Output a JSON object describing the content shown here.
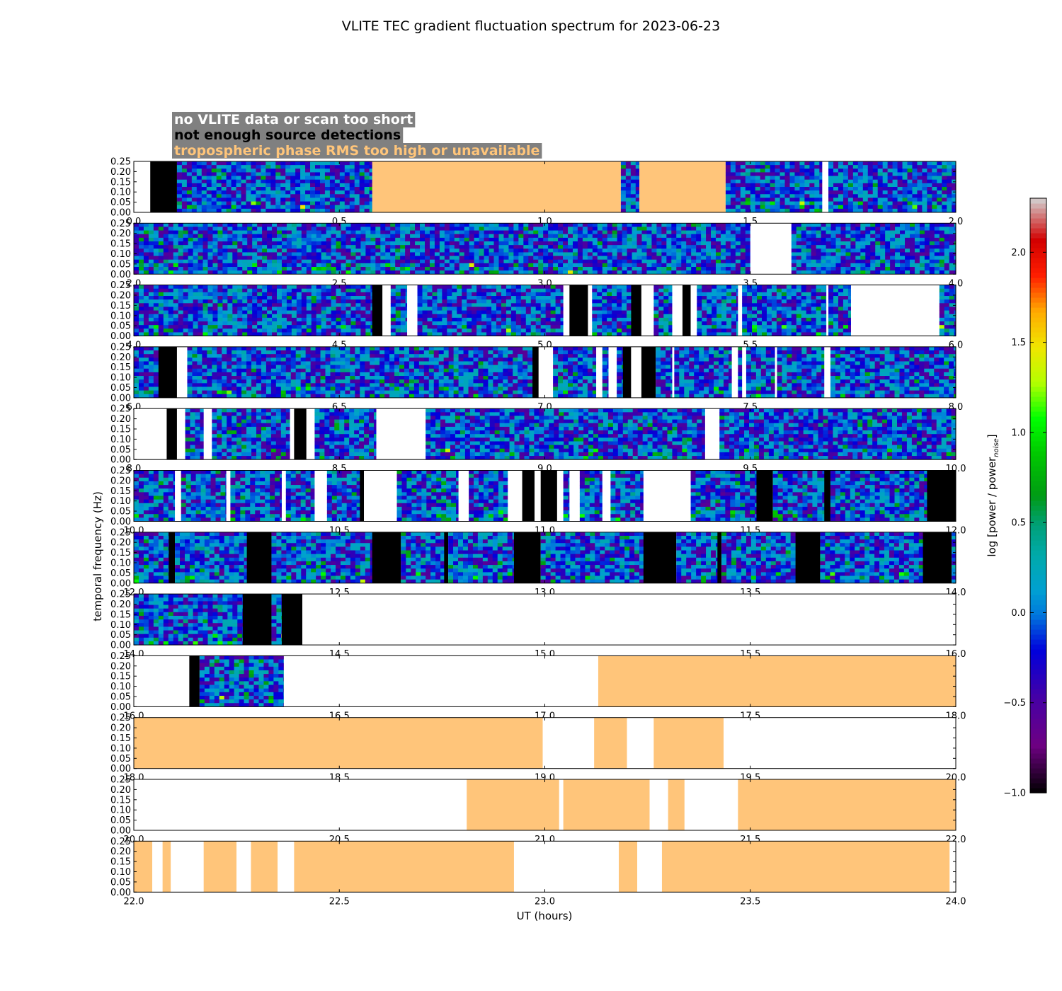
{
  "chart_data": {
    "type": "heatmap",
    "title": "VLITE TEC gradient fluctuation spectrum for 2023-06-23",
    "xlabel": "UT (hours)",
    "ylabel": "temporal frequency (Hz)",
    "ylim": [
      0,
      0.25
    ],
    "yticks": [
      "0.00",
      "0.05",
      "0.10",
      "0.15",
      "0.20",
      "0.25"
    ],
    "legend": {
      "position": "top-left",
      "entries": [
        {
          "label": "no VLITE data or scan too short",
          "category": "white",
          "text_color": "#ffffff",
          "box_color": "#808080"
        },
        {
          "label": "not enough source detections",
          "category": "black",
          "text_color": "#000000",
          "box_color": "#808080"
        },
        {
          "label": "tropospheric phase RMS too high or unavailable",
          "category": "orange",
          "text_color": "#ffc57a",
          "box_color": "#808080"
        }
      ]
    },
    "category_colors": {
      "white": "#ffffff",
      "black": "#000000",
      "orange": "#ffc57a"
    },
    "colorbar": {
      "label": "log [power / power",
      "label_sub": "noise",
      "label_end": "]",
      "range": [
        -1.0,
        2.3
      ],
      "ticks": [
        "−1.0",
        "−0.5",
        "0.0",
        "0.5",
        "1.0",
        "1.5",
        "2.0"
      ],
      "tick_values": [
        -1.0,
        -0.5,
        0.0,
        0.5,
        1.0,
        1.5,
        2.0
      ],
      "colormap": "spectral"
    },
    "panels": [
      {
        "x": [
          0.0,
          2.0
        ],
        "xticks": [
          "0.0",
          "0.5",
          "1.0",
          "1.5",
          "2.0"
        ],
        "seed": 11,
        "segments": [
          [
            0.0,
            0.04,
            "white"
          ],
          [
            0.04,
            0.105,
            "black"
          ],
          [
            0.105,
            0.58,
            "data"
          ],
          [
            0.58,
            1.185,
            "orange"
          ],
          [
            1.185,
            1.23,
            "data"
          ],
          [
            1.23,
            1.44,
            "orange"
          ],
          [
            1.44,
            1.675,
            "data"
          ],
          [
            1.675,
            1.69,
            "white"
          ],
          [
            1.69,
            2.0,
            "data"
          ]
        ]
      },
      {
        "x": [
          2.0,
          4.0
        ],
        "xticks": [
          "2.0",
          "2.5",
          "3.0",
          "3.5",
          "4.0"
        ],
        "seed": 23,
        "segments": [
          [
            2.0,
            3.5,
            "data"
          ],
          [
            3.5,
            3.6,
            "white"
          ],
          [
            3.6,
            4.0,
            "data"
          ]
        ]
      },
      {
        "x": [
          4.0,
          6.0
        ],
        "xticks": [
          "4.0",
          "4.5",
          "5.0",
          "5.5",
          "6.0"
        ],
        "seed": 37,
        "segments": [
          [
            4.0,
            4.58,
            "data"
          ],
          [
            4.58,
            4.605,
            "black"
          ],
          [
            4.605,
            4.625,
            "white"
          ],
          [
            4.625,
            4.665,
            "data"
          ],
          [
            4.665,
            4.69,
            "white"
          ],
          [
            4.69,
            5.045,
            "data"
          ],
          [
            5.045,
            5.06,
            "white"
          ],
          [
            5.06,
            5.105,
            "black"
          ],
          [
            5.105,
            5.115,
            "white"
          ],
          [
            5.115,
            5.21,
            "data"
          ],
          [
            5.21,
            5.235,
            "black"
          ],
          [
            5.235,
            5.265,
            "white"
          ],
          [
            5.265,
            5.31,
            "data"
          ],
          [
            5.31,
            5.335,
            "white"
          ],
          [
            5.335,
            5.355,
            "black"
          ],
          [
            5.355,
            5.37,
            "white"
          ],
          [
            5.37,
            5.47,
            "data"
          ],
          [
            5.47,
            5.48,
            "white"
          ],
          [
            5.48,
            5.685,
            "data"
          ],
          [
            5.685,
            5.69,
            "white"
          ],
          [
            5.69,
            5.745,
            "data"
          ],
          [
            5.745,
            5.96,
            "white"
          ],
          [
            5.96,
            6.0,
            "data"
          ]
        ]
      },
      {
        "x": [
          6.0,
          8.0
        ],
        "xticks": [
          "6.0",
          "6.5",
          "7.0",
          "7.5",
          "8.0"
        ],
        "seed": 41,
        "segments": [
          [
            6.0,
            6.06,
            "data"
          ],
          [
            6.06,
            6.105,
            "black"
          ],
          [
            6.105,
            6.13,
            "white"
          ],
          [
            6.13,
            6.97,
            "data"
          ],
          [
            6.97,
            6.985,
            "black"
          ],
          [
            6.985,
            7.02,
            "white"
          ],
          [
            7.02,
            7.125,
            "data"
          ],
          [
            7.125,
            7.14,
            "white"
          ],
          [
            7.14,
            7.155,
            "data"
          ],
          [
            7.155,
            7.175,
            "white"
          ],
          [
            7.175,
            7.19,
            "data"
          ],
          [
            7.19,
            7.21,
            "black"
          ],
          [
            7.21,
            7.235,
            "white"
          ],
          [
            7.235,
            7.27,
            "black"
          ],
          [
            7.27,
            7.31,
            "data"
          ],
          [
            7.31,
            7.315,
            "white"
          ],
          [
            7.315,
            7.455,
            "data"
          ],
          [
            7.455,
            7.47,
            "white"
          ],
          [
            7.47,
            7.48,
            "data"
          ],
          [
            7.48,
            7.49,
            "white"
          ],
          [
            7.49,
            7.56,
            "data"
          ],
          [
            7.56,
            7.565,
            "white"
          ],
          [
            7.565,
            7.68,
            "data"
          ],
          [
            7.68,
            7.695,
            "white"
          ],
          [
            7.695,
            8.0,
            "data"
          ]
        ]
      },
      {
        "x": [
          8.0,
          10.0
        ],
        "xticks": [
          "8.0",
          "8.5",
          "9.0",
          "9.5",
          "10.0"
        ],
        "seed": 53,
        "segments": [
          [
            8.0,
            8.08,
            "white"
          ],
          [
            8.08,
            8.105,
            "black"
          ],
          [
            8.105,
            8.125,
            "white"
          ],
          [
            8.125,
            8.17,
            "data"
          ],
          [
            8.17,
            8.19,
            "white"
          ],
          [
            8.19,
            8.38,
            "data"
          ],
          [
            8.38,
            8.39,
            "white"
          ],
          [
            8.39,
            8.42,
            "black"
          ],
          [
            8.42,
            8.44,
            "white"
          ],
          [
            8.44,
            8.59,
            "data"
          ],
          [
            8.59,
            8.71,
            "white"
          ],
          [
            8.71,
            9.39,
            "data"
          ],
          [
            9.39,
            9.425,
            "white"
          ],
          [
            9.425,
            10.0,
            "data"
          ]
        ]
      },
      {
        "x": [
          10.0,
          12.0
        ],
        "xticks": [
          "10.0",
          "10.5",
          "11.0",
          "11.5",
          "12.0"
        ],
        "seed": 67,
        "segments": [
          [
            10.0,
            10.1,
            "data"
          ],
          [
            10.1,
            10.115,
            "white"
          ],
          [
            10.115,
            10.225,
            "data"
          ],
          [
            10.225,
            10.235,
            "white"
          ],
          [
            10.235,
            10.36,
            "data"
          ],
          [
            10.36,
            10.37,
            "white"
          ],
          [
            10.37,
            10.44,
            "data"
          ],
          [
            10.44,
            10.47,
            "white"
          ],
          [
            10.47,
            10.55,
            "data"
          ],
          [
            10.55,
            10.56,
            "black"
          ],
          [
            10.56,
            10.64,
            "white"
          ],
          [
            10.64,
            10.79,
            "data"
          ],
          [
            10.79,
            10.815,
            "white"
          ],
          [
            10.815,
            10.91,
            "data"
          ],
          [
            10.91,
            10.945,
            "white"
          ],
          [
            10.945,
            10.975,
            "black"
          ],
          [
            10.975,
            10.99,
            "white"
          ],
          [
            10.99,
            11.03,
            "black"
          ],
          [
            11.03,
            11.045,
            "white"
          ],
          [
            11.045,
            11.06,
            "data"
          ],
          [
            11.06,
            11.085,
            "white"
          ],
          [
            11.085,
            11.14,
            "data"
          ],
          [
            11.14,
            11.16,
            "white"
          ],
          [
            11.16,
            11.24,
            "data"
          ],
          [
            11.24,
            11.355,
            "white"
          ],
          [
            11.355,
            11.515,
            "data"
          ],
          [
            11.515,
            11.555,
            "black"
          ],
          [
            11.555,
            11.68,
            "data"
          ],
          [
            11.68,
            11.695,
            "black"
          ],
          [
            11.695,
            11.93,
            "data"
          ],
          [
            11.93,
            12.0,
            "black"
          ]
        ]
      },
      {
        "x": [
          12.0,
          14.0
        ],
        "xticks": [
          "12.0",
          "12.5",
          "13.0",
          "13.5",
          "14.0"
        ],
        "seed": 71,
        "segments": [
          [
            12.0,
            12.085,
            "data"
          ],
          [
            12.085,
            12.1,
            "black"
          ],
          [
            12.1,
            12.275,
            "data"
          ],
          [
            12.275,
            12.335,
            "black"
          ],
          [
            12.335,
            12.58,
            "data"
          ],
          [
            12.58,
            12.65,
            "black"
          ],
          [
            12.65,
            12.755,
            "data"
          ],
          [
            12.755,
            12.765,
            "black"
          ],
          [
            12.765,
            12.925,
            "data"
          ],
          [
            12.925,
            12.99,
            "black"
          ],
          [
            12.99,
            13.24,
            "data"
          ],
          [
            13.24,
            13.32,
            "black"
          ],
          [
            13.32,
            13.42,
            "data"
          ],
          [
            13.42,
            13.43,
            "black"
          ],
          [
            13.43,
            13.61,
            "data"
          ],
          [
            13.61,
            13.67,
            "black"
          ],
          [
            13.67,
            13.92,
            "data"
          ],
          [
            13.92,
            13.99,
            "black"
          ],
          [
            13.99,
            14.0,
            "data"
          ]
        ]
      },
      {
        "x": [
          14.0,
          16.0
        ],
        "xticks": [
          "14.0",
          "14.5",
          "15.0",
          "15.5",
          "16.0"
        ],
        "seed": 83,
        "segments": [
          [
            14.0,
            14.265,
            "data"
          ],
          [
            14.265,
            14.335,
            "black"
          ],
          [
            14.335,
            14.36,
            "data"
          ],
          [
            14.36,
            14.41,
            "black"
          ],
          [
            14.41,
            16.0,
            "white"
          ]
        ]
      },
      {
        "x": [
          16.0,
          18.0
        ],
        "xticks": [
          "16.0",
          "16.5",
          "17.0",
          "17.5",
          "18.0"
        ],
        "seed": 97,
        "segments": [
          [
            16.0,
            16.135,
            "white"
          ],
          [
            16.135,
            16.16,
            "black"
          ],
          [
            16.16,
            16.365,
            "data"
          ],
          [
            16.365,
            17.13,
            "white"
          ],
          [
            17.13,
            18.0,
            "orange"
          ]
        ]
      },
      {
        "x": [
          18.0,
          20.0
        ],
        "xticks": [
          "18.0",
          "18.5",
          "19.0",
          "19.5",
          "20.0"
        ],
        "seed": 101,
        "segments": [
          [
            18.0,
            18.995,
            "orange"
          ],
          [
            18.995,
            19.12,
            "white"
          ],
          [
            19.12,
            19.2,
            "orange"
          ],
          [
            19.2,
            19.265,
            "white"
          ],
          [
            19.265,
            19.435,
            "orange"
          ],
          [
            19.435,
            20.0,
            "white"
          ]
        ]
      },
      {
        "x": [
          20.0,
          22.0
        ],
        "xticks": [
          "20.0",
          "20.5",
          "21.0",
          "21.5",
          "22.0"
        ],
        "seed": 113,
        "segments": [
          [
            20.0,
            20.81,
            "white"
          ],
          [
            20.81,
            21.035,
            "orange"
          ],
          [
            21.035,
            21.045,
            "white"
          ],
          [
            21.045,
            21.255,
            "orange"
          ],
          [
            21.255,
            21.3,
            "white"
          ],
          [
            21.3,
            21.34,
            "orange"
          ],
          [
            21.34,
            21.47,
            "white"
          ],
          [
            21.47,
            22.0,
            "orange"
          ]
        ]
      },
      {
        "x": [
          22.0,
          24.0
        ],
        "xticks": [
          "22.0",
          "22.5",
          "23.0",
          "23.5",
          "24.0"
        ],
        "seed": 127,
        "segments": [
          [
            22.0,
            22.045,
            "orange"
          ],
          [
            22.045,
            22.07,
            "white"
          ],
          [
            22.07,
            22.09,
            "orange"
          ],
          [
            22.09,
            22.17,
            "white"
          ],
          [
            22.17,
            22.25,
            "orange"
          ],
          [
            22.25,
            22.285,
            "white"
          ],
          [
            22.285,
            22.35,
            "orange"
          ],
          [
            22.35,
            22.39,
            "white"
          ],
          [
            22.39,
            22.925,
            "orange"
          ],
          [
            22.925,
            23.18,
            "white"
          ],
          [
            23.18,
            23.225,
            "orange"
          ],
          [
            23.225,
            23.285,
            "white"
          ],
          [
            23.285,
            23.985,
            "orange"
          ],
          [
            23.985,
            24.0,
            "white"
          ]
        ]
      }
    ]
  }
}
